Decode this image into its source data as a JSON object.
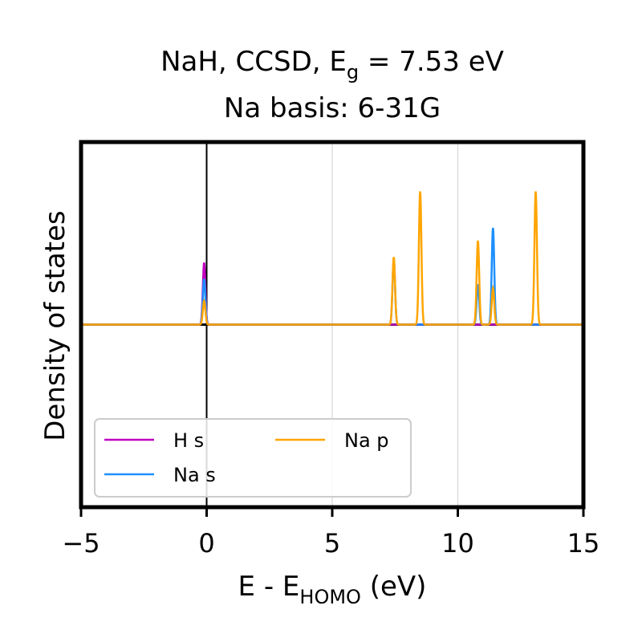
{
  "chart_data": {
    "type": "line",
    "title_main": "NaH, CCSD, E",
    "title_sub": "g",
    "title_tail": " = 7.53 eV",
    "title_line2": "Na basis: 6-31G",
    "xlabel_main": "E - E",
    "xlabel_sub": "HOMO",
    "xlabel_tail": " (eV)",
    "ylabel": "Density of states",
    "xlim": [
      -5,
      15
    ],
    "ylim": [
      -1,
      1
    ],
    "xticks": [
      -5,
      0,
      5,
      10,
      15
    ],
    "xtick_labels": [
      "−5",
      "0",
      "5",
      "10",
      "15"
    ],
    "grid_x": [
      5,
      10
    ],
    "vline_x": 0,
    "hline_y": 0,
    "peak_sigma": 0.05,
    "legend": {
      "location": "lower-left",
      "ncol": 2
    },
    "series": [
      {
        "name": "H s",
        "color": "#c000c0",
        "peaks": [
          {
            "x": -0.1,
            "y": 0.34
          }
        ]
      },
      {
        "name": "Na s",
        "color": "#1e90ff",
        "peaks": [
          {
            "x": -0.1,
            "y": 0.25
          },
          {
            "x": 7.45,
            "y": 0.36
          },
          {
            "x": 10.8,
            "y": 0.22
          },
          {
            "x": 11.4,
            "y": 0.53
          }
        ]
      },
      {
        "name": "Na p",
        "color": "#ffa500",
        "peaks": [
          {
            "x": -0.1,
            "y": 0.13
          },
          {
            "x": 7.45,
            "y": 0.37
          },
          {
            "x": 8.5,
            "y": 0.73
          },
          {
            "x": 10.8,
            "y": 0.46
          },
          {
            "x": 11.4,
            "y": 0.2
          },
          {
            "x": 13.1,
            "y": 0.73
          }
        ]
      }
    ]
  }
}
